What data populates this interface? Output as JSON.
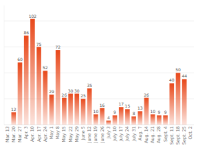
{
  "chart_data": {
    "type": "bar",
    "categories": [
      "Mar. 13",
      "Mar. 20",
      "Mar. 27",
      "Apr. 3",
      "Apr. 10",
      "Apr. 17",
      "Apr. 24",
      "May 1",
      "May 8",
      "May 15",
      "May 22",
      "May 29",
      "June 5",
      "June 12",
      "June 19",
      "June 26",
      "July 3",
      "July 10",
      "July 17",
      "July 24",
      "July 31",
      "Aug. 7",
      "Aug. 14",
      "Aug. 21",
      "Aug. 28",
      "Sept. 4",
      "Sept. 11",
      "Sept. 18",
      "Sept. 25",
      "Oct. 2"
    ],
    "values": [
      0,
      12,
      60,
      86,
      102,
      75,
      52,
      29,
      72,
      26,
      30,
      30,
      25,
      35,
      10,
      16,
      4,
      9,
      17,
      15,
      8,
      13,
      26,
      10,
      9,
      9,
      40,
      50,
      44,
      0
    ],
    "color": "#e8481a",
    "ylim": [
      0,
      115
    ],
    "yticks": [
      25,
      50,
      75,
      100
    ],
    "grid": true,
    "data_labels": true,
    "tick_labels": "x"
  }
}
